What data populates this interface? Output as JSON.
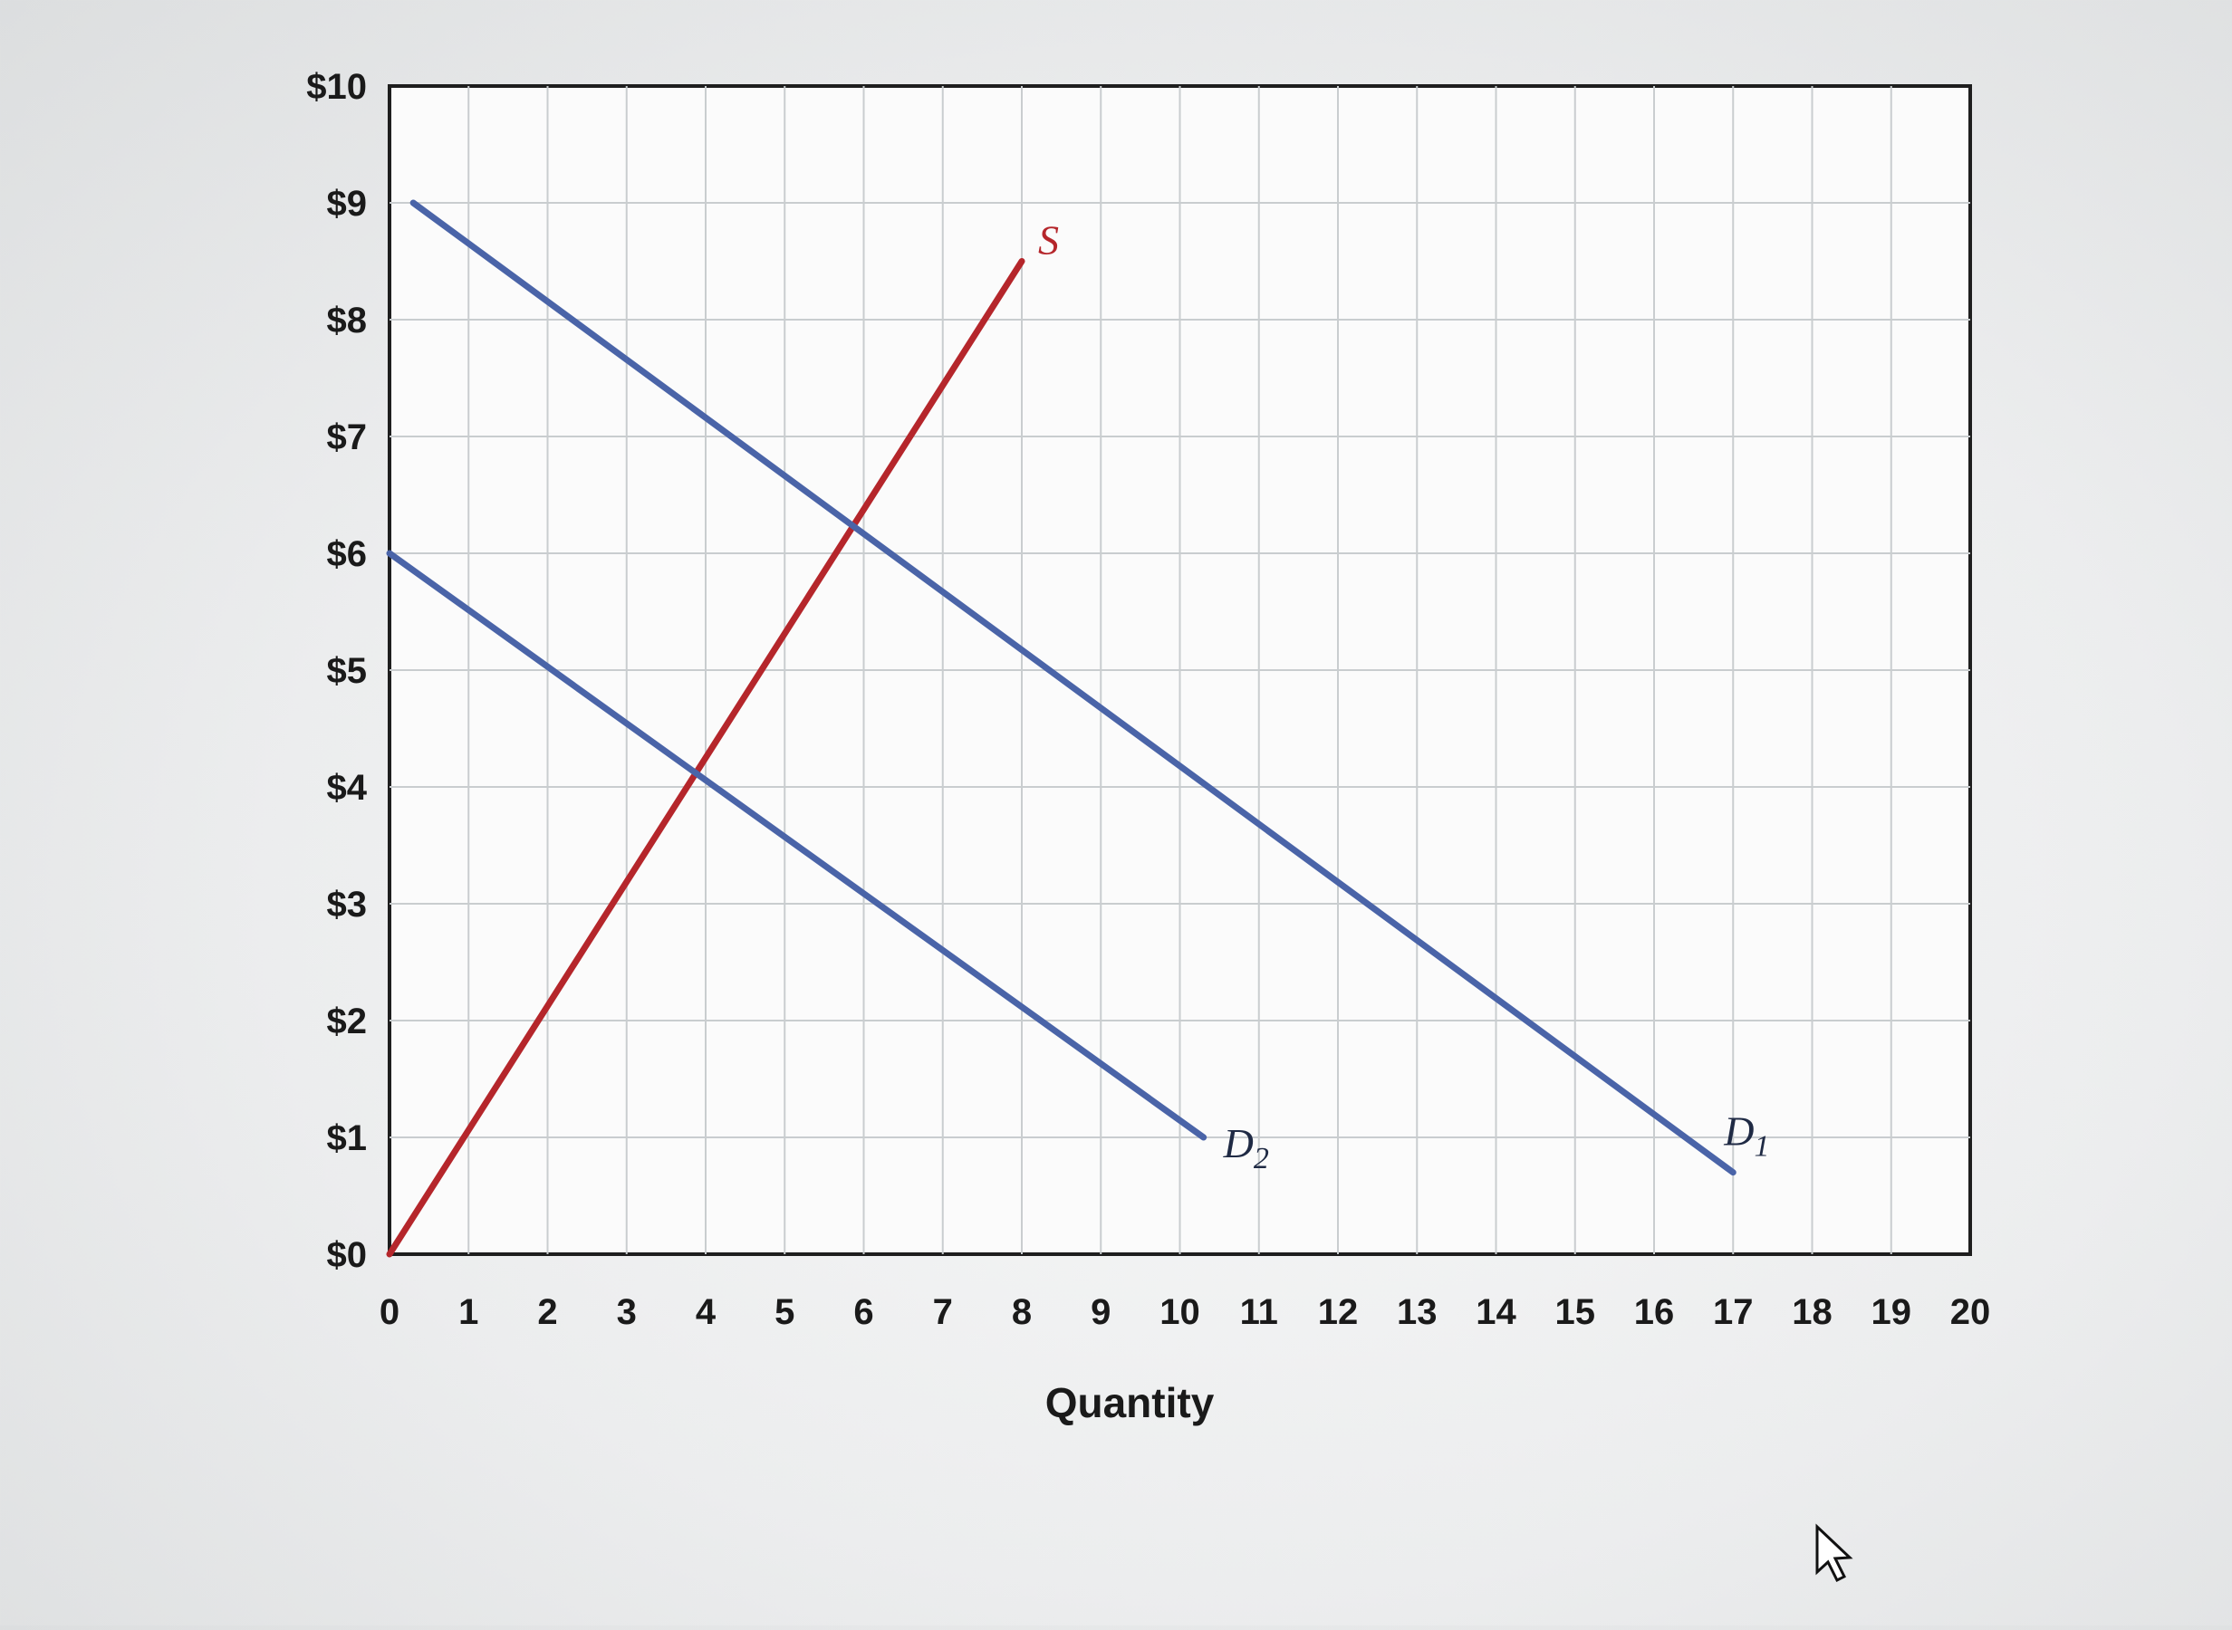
{
  "chart_data": {
    "type": "line",
    "title": "",
    "xlabel": "Quantity",
    "ylabel": "",
    "xlim": [
      0,
      20
    ],
    "ylim": [
      0,
      10
    ],
    "grid": true,
    "x_ticks": [
      "0",
      "1",
      "2",
      "3",
      "4",
      "5",
      "6",
      "7",
      "8",
      "9",
      "10",
      "11",
      "12",
      "13",
      "14",
      "15",
      "16",
      "17",
      "18",
      "19",
      "20"
    ],
    "y_ticks": [
      "$0",
      "$1",
      "$2",
      "$3",
      "$4",
      "$5",
      "$6",
      "$7",
      "$8",
      "$9",
      "$10"
    ],
    "series": [
      {
        "name": "S",
        "label_main": "S",
        "label_sub": "",
        "color": "#b5262b",
        "x": [
          0,
          8
        ],
        "y": [
          0,
          8.5
        ]
      },
      {
        "name": "D1",
        "label_main": "D",
        "label_sub": "1",
        "color": "#4a64a8",
        "x": [
          0.3,
          17
        ],
        "y": [
          9,
          0.7
        ]
      },
      {
        "name": "D2",
        "label_main": "D",
        "label_sub": "2",
        "color": "#4a64a8",
        "x": [
          0,
          10.3
        ],
        "y": [
          6,
          1
        ]
      }
    ]
  }
}
